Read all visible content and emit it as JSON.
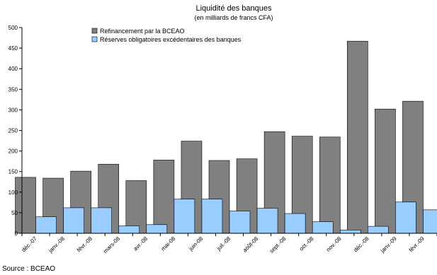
{
  "chart_data": {
    "type": "bar",
    "title": "Liquidité des banques",
    "subtitle": "(en milliards de francs CFA)",
    "xlabel": "",
    "ylabel": "",
    "ylim": [
      0,
      500
    ],
    "yticks": [
      0,
      50,
      100,
      150,
      200,
      250,
      300,
      350,
      400,
      450,
      500
    ],
    "grid": false,
    "legend_position": "top-left",
    "categories": [
      "déc.-07",
      "janv.-08",
      "févr.-08",
      "mars-08",
      "avr.-08",
      "mai-08",
      "juin-08",
      "juil.-08",
      "août-08",
      "sept.-08",
      "oct.-08",
      "nov.-08",
      "déc.-08",
      "janv.-09",
      "févr.-09"
    ],
    "series": [
      {
        "name": "Refinancement par la BCEAO",
        "color": "#808080",
        "values": [
          136,
          134,
          151,
          168,
          128,
          178,
          224,
          177,
          181,
          247,
          236,
          234,
          467,
          302,
          321
        ]
      },
      {
        "name": "Réserves obligatoires excédentaires des banques",
        "color": "#99ccff",
        "values": [
          40,
          62,
          62,
          18,
          21,
          83,
          83,
          54,
          61,
          48,
          28,
          8,
          17,
          76,
          57
        ]
      }
    ],
    "source": "Source : BCEAO"
  }
}
